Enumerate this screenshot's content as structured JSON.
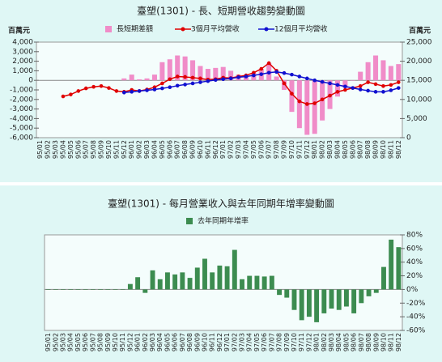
{
  "chart_data": [
    {
      "type": "combo",
      "title": "臺塑(1301) - 長、短期營收趨勢變動圖",
      "y_label": "百萬元",
      "y2_label": "百萬元",
      "categories": [
        "95/01",
        "95/02",
        "95/03",
        "95/04",
        "95/05",
        "95/06",
        "95/07",
        "95/08",
        "95/09",
        "95/10",
        "95/11",
        "95/12",
        "96/01",
        "96/02",
        "96/03",
        "96/04",
        "96/05",
        "96/06",
        "96/07",
        "96/08",
        "96/09",
        "96/10",
        "96/11",
        "96/12",
        "97/01",
        "97/02",
        "97/03",
        "97/04",
        "97/05",
        "97/06",
        "97/07",
        "97/08",
        "97/09",
        "97/10",
        "97/11",
        "97/12",
        "98/01",
        "98/02",
        "98/03",
        "98/04",
        "98/05",
        "98/06",
        "98/07",
        "98/08",
        "98/09",
        "98/10",
        "98/11",
        "98/12"
      ],
      "series": [
        {
          "name": "長短期差額",
          "kind": "bar",
          "color": "#f08cc8",
          "values": [
            null,
            null,
            null,
            null,
            null,
            null,
            null,
            null,
            null,
            null,
            null,
            200,
            600,
            100,
            200,
            600,
            1900,
            2200,
            2600,
            2500,
            2100,
            1500,
            1200,
            1300,
            1400,
            1000,
            600,
            600,
            800,
            1200,
            1800,
            400,
            -1000,
            -3300,
            -5000,
            -5700,
            -5600,
            -4200,
            -3000,
            -1700,
            -800,
            0,
            900,
            1900,
            2600,
            2100,
            1500,
            1700
          ]
        },
        {
          "name": "3個月平均營收",
          "kind": "line",
          "axis": "y2",
          "color": "#e00000",
          "values": [
            null,
            null,
            null,
            10800,
            11300,
            12200,
            12900,
            13300,
            13500,
            13000,
            12200,
            12000,
            12500,
            12200,
            12600,
            13200,
            14200,
            15300,
            16000,
            15900,
            15700,
            15500,
            15200,
            15300,
            15700,
            15600,
            16000,
            16300,
            17000,
            18000,
            19500,
            17500,
            14200,
            11500,
            9500,
            8800,
            9000,
            10000,
            11000,
            12000,
            12500,
            13000,
            13500,
            14500,
            14000,
            13500,
            13800,
            14500
          ]
        },
        {
          "name": "12個月平均營收",
          "kind": "line",
          "axis": "y2",
          "color": "#1010d0",
          "values": [
            null,
            null,
            null,
            null,
            null,
            null,
            null,
            null,
            null,
            null,
            null,
            11800,
            12000,
            12200,
            12400,
            12600,
            12900,
            13200,
            13600,
            13900,
            14200,
            14500,
            14800,
            15100,
            15300,
            15500,
            15800,
            16000,
            16300,
            16600,
            17000,
            17200,
            16900,
            16500,
            16000,
            15500,
            15000,
            14600,
            14200,
            13800,
            13400,
            13000,
            12600,
            12300,
            12000,
            12000,
            12400,
            13000
          ]
        }
      ],
      "ylim": [
        -6000,
        4000
      ],
      "yticks": [
        {
          "value": 4000,
          "label": "4,000"
        },
        {
          "value": 3000,
          "label": "3,000"
        },
        {
          "value": 2000,
          "label": "2,000"
        },
        {
          "value": 1000,
          "label": "1,000"
        },
        0,
        {
          "value": -1000,
          "label": "-1,000"
        },
        {
          "value": -2000,
          "label": "-2,000"
        },
        {
          "value": -3000,
          "label": "-3,000"
        },
        {
          "value": -4000,
          "label": "-4,000"
        },
        {
          "value": -5000,
          "label": "-5,000"
        },
        {
          "value": -6000,
          "label": "-6,000"
        }
      ],
      "y2lim": [
        0,
        25000
      ],
      "y2ticks": [
        {
          "value": 25000,
          "label": "25,000"
        },
        {
          "value": 20000,
          "label": "20,000"
        },
        {
          "value": 15000,
          "label": "15,000"
        },
        {
          "value": 10000,
          "label": "10,000"
        },
        {
          "value": 5000,
          "label": "5,000"
        },
        0
      ]
    },
    {
      "type": "bar",
      "title": "臺塑(1301) - 每月營業收入與去年同期年增率變動圖",
      "y_axis_position": "right",
      "categories": [
        "95/01",
        "95/02",
        "95/03",
        "95/04",
        "95/05",
        "95/06",
        "95/07",
        "95/08",
        "95/09",
        "95/10",
        "95/11",
        "95/12",
        "96/01",
        "96/02",
        "96/03",
        "96/04",
        "96/05",
        "96/06",
        "96/07",
        "96/08",
        "96/09",
        "96/10",
        "96/11",
        "96/12",
        "97/01",
        "97/02",
        "97/03",
        "97/04",
        "97/05",
        "97/06",
        "97/07",
        "97/08",
        "97/09",
        "97/10",
        "97/11",
        "97/12",
        "98/01",
        "98/02",
        "98/03",
        "98/04",
        "98/05",
        "98/06",
        "98/07",
        "98/08",
        "98/09",
        "98/10",
        "98/11",
        "98/12"
      ],
      "series": [
        {
          "name": "去年同期年增率",
          "kind": "bar",
          "color": "#3c8c50",
          "values": [
            0,
            0,
            0,
            0,
            0,
            0,
            0,
            0,
            0,
            0,
            0,
            8,
            18,
            -5,
            28,
            15,
            25,
            22,
            25,
            17,
            32,
            45,
            25,
            35,
            34,
            58,
            15,
            20,
            20,
            19,
            20,
            -8,
            -12,
            -30,
            -45,
            -40,
            -48,
            -35,
            -28,
            -30,
            -25,
            -35,
            -20,
            -10,
            -5,
            33,
            73,
            62
          ]
        }
      ],
      "ylim": [
        -60,
        80
      ],
      "yticks": [
        {
          "value": 80,
          "label": "80%"
        },
        {
          "value": 60,
          "label": "60%"
        },
        {
          "value": 40,
          "label": "40%"
        },
        {
          "value": 20,
          "label": "20%"
        },
        {
          "value": 0,
          "label": "0%"
        },
        {
          "value": -20,
          "label": "-20%"
        },
        {
          "value": -40,
          "label": "-40%"
        },
        {
          "value": -60,
          "label": "-60%"
        }
      ]
    }
  ]
}
